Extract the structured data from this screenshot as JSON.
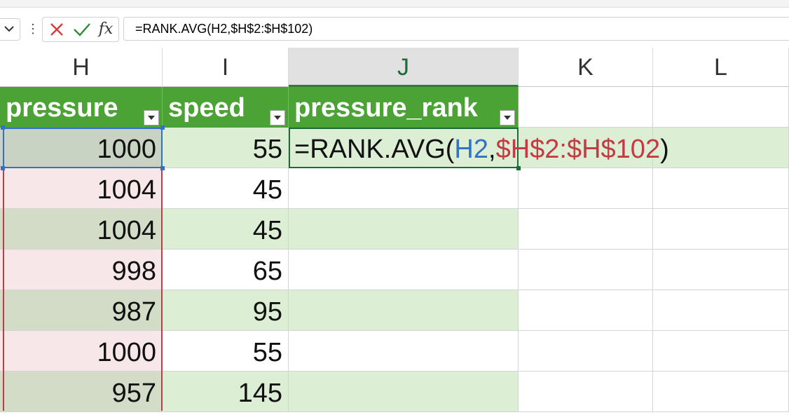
{
  "formula_bar": {
    "formula": "=RANK.AVG(H2,$H$2:$H$102)",
    "fx_label": "fx"
  },
  "columns": [
    {
      "letter": "H",
      "selected": false
    },
    {
      "letter": "I",
      "selected": false
    },
    {
      "letter": "J",
      "selected": true
    },
    {
      "letter": "K",
      "selected": false
    },
    {
      "letter": "L",
      "selected": false
    }
  ],
  "table": {
    "headers": [
      "pressure",
      "speed",
      "pressure_rank"
    ],
    "rows": [
      {
        "pressure": "1000",
        "speed": "55"
      },
      {
        "pressure": "1004",
        "speed": "45"
      },
      {
        "pressure": "1004",
        "speed": "45"
      },
      {
        "pressure": "998",
        "speed": "65"
      },
      {
        "pressure": "987",
        "speed": "95"
      },
      {
        "pressure": "1000",
        "speed": "55"
      },
      {
        "pressure": "957",
        "speed": "145"
      }
    ]
  },
  "edit_cell": {
    "prefix": "=RANK.AVG(",
    "ref1": "H2",
    "sep": ",",
    "ref2": "$H$2:$H$102",
    "suffix": ")"
  },
  "colors": {
    "header_green": "#4aa334",
    "band_green": "#dcefd4",
    "ref_blue": "#3371c6",
    "ref_red": "#c43a44"
  }
}
